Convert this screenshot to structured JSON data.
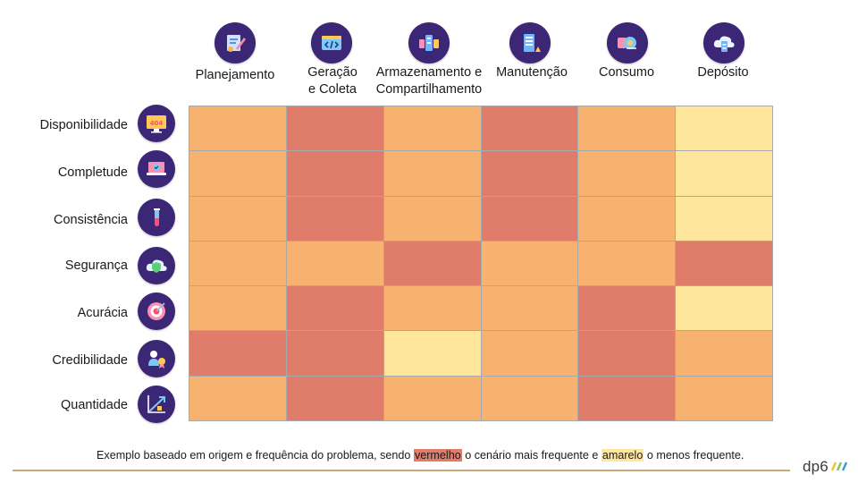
{
  "columns": [
    {
      "label": "Planejamento",
      "icon": "planning-icon"
    },
    {
      "label": "Geração\ne Coleta",
      "icon": "code-window-icon"
    },
    {
      "label": "Armazenamento e\nCompartilhamento",
      "icon": "storage-share-icon"
    },
    {
      "label": "Manutenção",
      "icon": "server-maintenance-icon"
    },
    {
      "label": "Consumo",
      "icon": "consumption-icon"
    },
    {
      "label": "Depósito",
      "icon": "cloud-server-icon"
    }
  ],
  "rows": [
    {
      "label": "Disponibilidade",
      "icon": "monitor-404-icon"
    },
    {
      "label": "Completude",
      "icon": "laptop-check-icon"
    },
    {
      "label": "Consistência",
      "icon": "test-tube-icon"
    },
    {
      "label": "Segurança",
      "icon": "cloud-shield-icon"
    },
    {
      "label": "Acurácia",
      "icon": "target-icon"
    },
    {
      "label": "Credibilidade",
      "icon": "award-badge-icon"
    },
    {
      "label": "Quantidade",
      "icon": "growth-chart-icon"
    }
  ],
  "levels": {
    "O": "#f7b26f",
    "R": "#e07c6a",
    "Y": "#ffe69d"
  },
  "matrix": [
    [
      "O",
      "R",
      "O",
      "R",
      "O",
      "Y"
    ],
    [
      "O",
      "R",
      "O",
      "R",
      "O",
      "Y"
    ],
    [
      "O",
      "R",
      "O",
      "R",
      "O",
      "Y"
    ],
    [
      "O",
      "O",
      "R",
      "O",
      "O",
      "R"
    ],
    [
      "O",
      "R",
      "O",
      "O",
      "R",
      "Y"
    ],
    [
      "R",
      "R",
      "Y",
      "O",
      "R",
      "O"
    ],
    [
      "O",
      "R",
      "O",
      "O",
      "R",
      "O"
    ]
  ],
  "caption": {
    "part1": "Exemplo baseado em origem e frequência do problema, sendo ",
    "red_word": "vermelho",
    "part2": " o cenário mais frequente e ",
    "yellow_word": "amarelo",
    "part3": " o menos frequente."
  },
  "logo": {
    "text": "dp6",
    "icon": "logo-stripes-icon"
  },
  "colors": {
    "icon_bg": "#3b2775",
    "divider": "#c9a87a"
  }
}
